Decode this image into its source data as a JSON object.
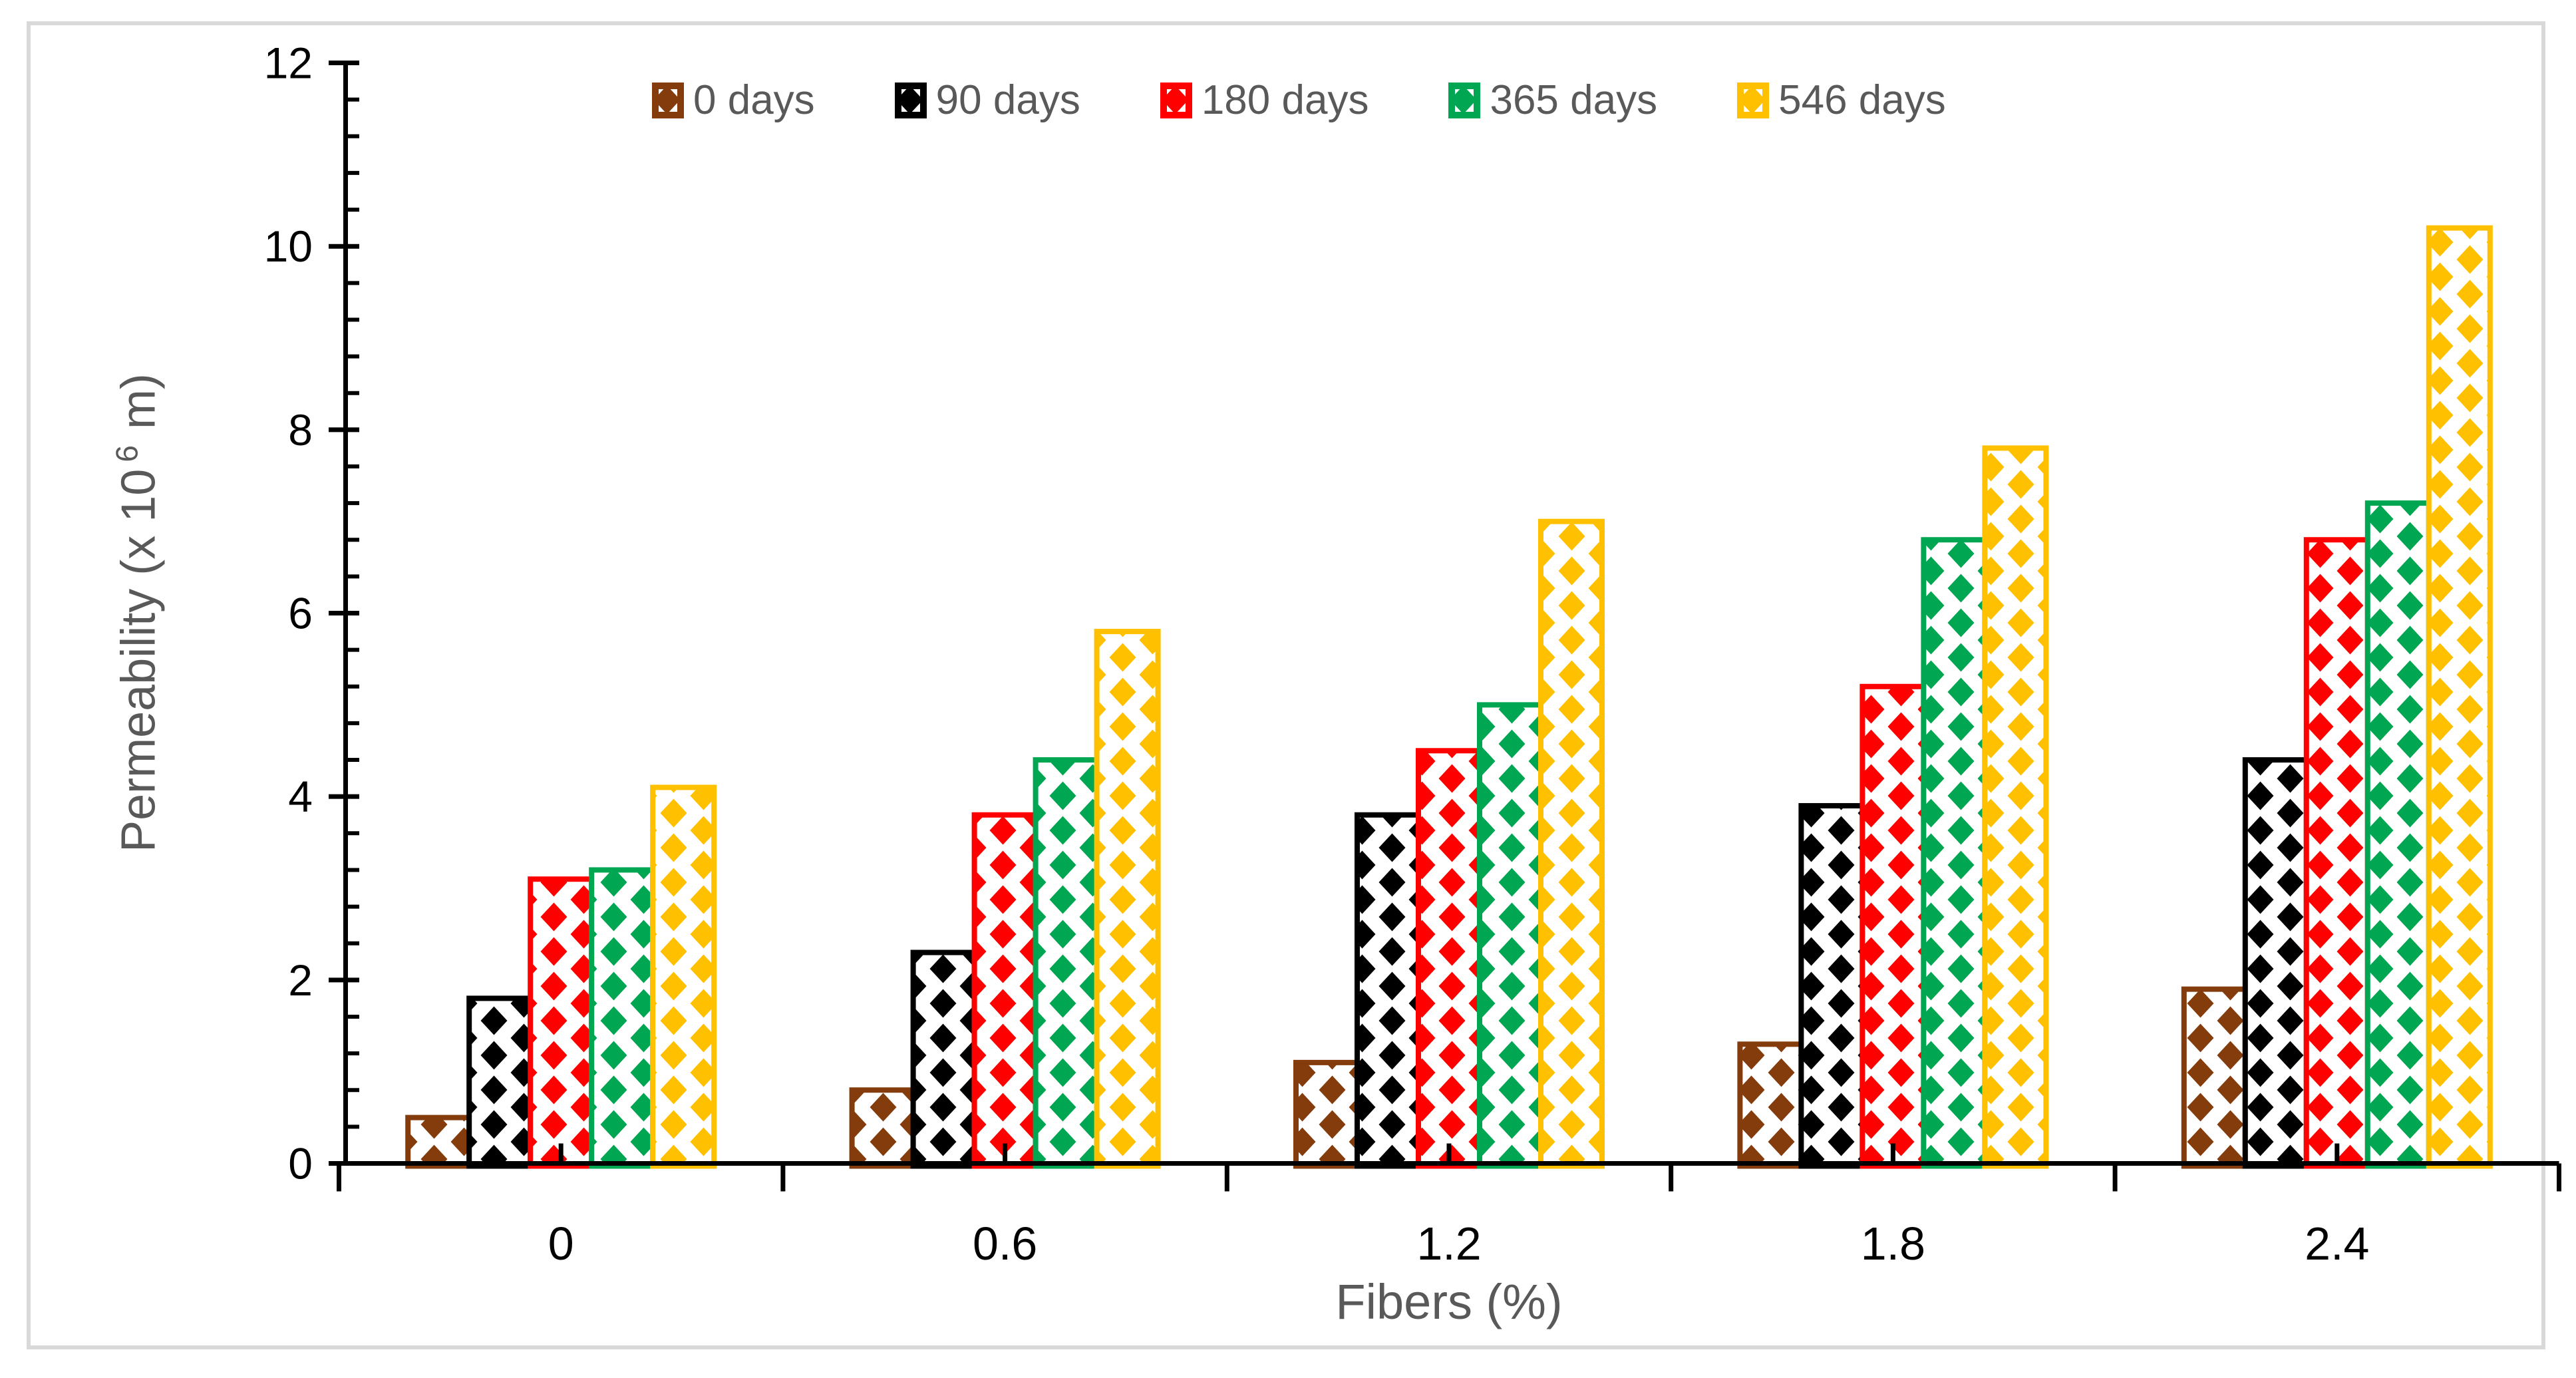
{
  "figure": {
    "background": "#FFFFFF",
    "border_color": "#D9D9D9"
  },
  "chart_data": {
    "type": "bar",
    "title": "",
    "categories": [
      "0",
      "0.6",
      "1.2",
      "1.8",
      "2.4"
    ],
    "series": [
      {
        "name": "0 days",
        "color": "#843C0C",
        "values": [
          0.5,
          0.8,
          1.1,
          1.3,
          1.9
        ]
      },
      {
        "name": "90 days",
        "color": "#000000",
        "values": [
          1.8,
          2.3,
          3.8,
          3.9,
          4.4
        ]
      },
      {
        "name": "180 days",
        "color": "#FF0000",
        "values": [
          3.1,
          3.8,
          4.5,
          5.2,
          6.8
        ]
      },
      {
        "name": "365 days",
        "color": "#00A651",
        "values": [
          3.2,
          4.4,
          5.0,
          6.8,
          7.2
        ]
      },
      {
        "name": "546 days",
        "color": "#FFC000",
        "values": [
          4.1,
          5.8,
          7.0,
          7.8,
          10.2
        ]
      }
    ],
    "xlabel": "Fibers (%)",
    "ylabel": "Permeability (x 10^6 m)",
    "ylim": [
      0,
      12
    ],
    "y_major_ticks": [
      0,
      2,
      4,
      6,
      8,
      10,
      12
    ],
    "y_minor_step": 0.4,
    "x_minor_ticks_at_category_centers": true,
    "grid": false,
    "legend_position": "top",
    "bar_fill_pattern": "diamond-checkerboard",
    "bar_outline": "series-color"
  },
  "y_axis": {
    "title_prefix": "Permeability (x 10",
    "title_sup": "6",
    "title_suffix": " m)",
    "tick_labels": [
      "0",
      "2",
      "4",
      "6",
      "8",
      "10",
      "12"
    ]
  },
  "x_axis": {
    "title": "Fibers (%)",
    "tick_labels": [
      "0",
      "0.6",
      "1.2",
      "1.8",
      "2.4"
    ]
  },
  "legend": {
    "items": [
      {
        "label": "0 days"
      },
      {
        "label": "90 days"
      },
      {
        "label": "180 days"
      },
      {
        "label": "365 days"
      },
      {
        "label": "546 days"
      }
    ]
  },
  "colors": {
    "axis": "#000000",
    "tick_label": "#000000",
    "axis_title": "#595959",
    "legend_text": "#595959",
    "figure_border": "#D9D9D9"
  }
}
